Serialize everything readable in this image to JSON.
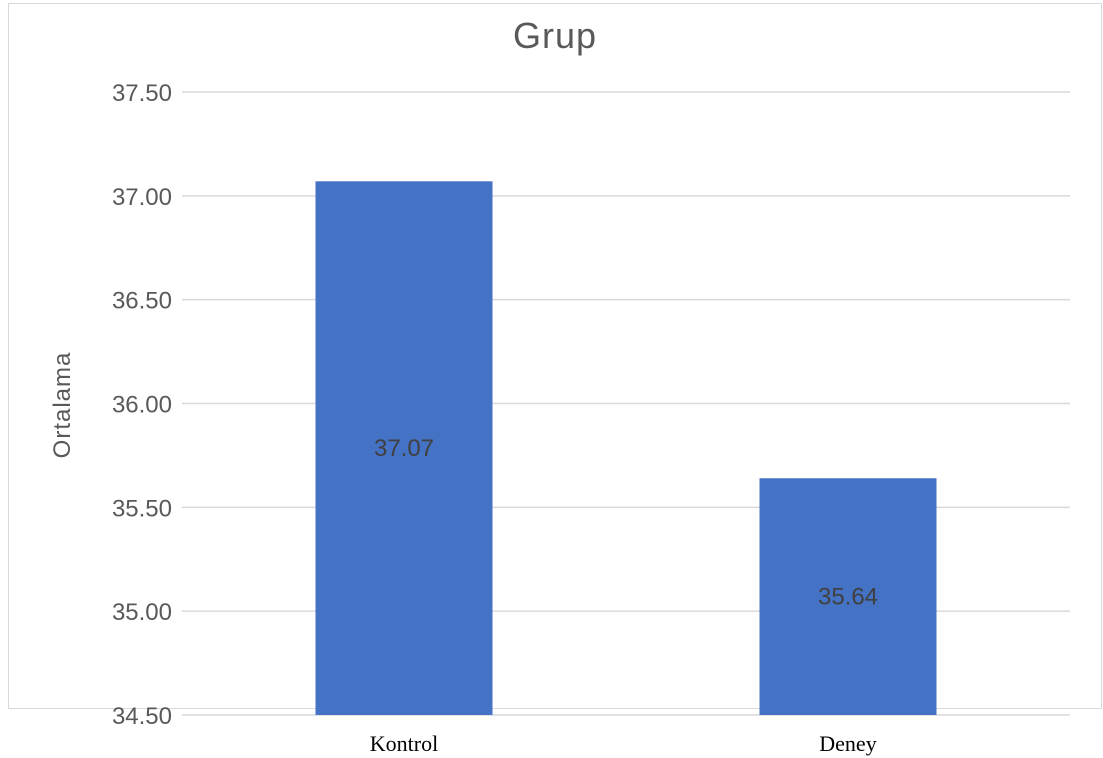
{
  "chart_data": {
    "type": "bar",
    "title": "Grup",
    "xlabel": "",
    "ylabel": "Ortalama",
    "categories": [
      "Kontrol",
      "Deney"
    ],
    "values": [
      37.07,
      35.64
    ],
    "data_labels": [
      "37.07",
      "35.64"
    ],
    "ylim": [
      34.5,
      37.5
    ],
    "y_ticks": [
      "34.50",
      "35.00",
      "35.50",
      "36.00",
      "36.50",
      "37.00",
      "37.50"
    ],
    "y_tick_values": [
      34.5,
      35.0,
      35.5,
      36.0,
      36.5,
      37.0,
      37.5
    ],
    "grid": true,
    "legend": "none",
    "bar_color": "#4472c4"
  }
}
